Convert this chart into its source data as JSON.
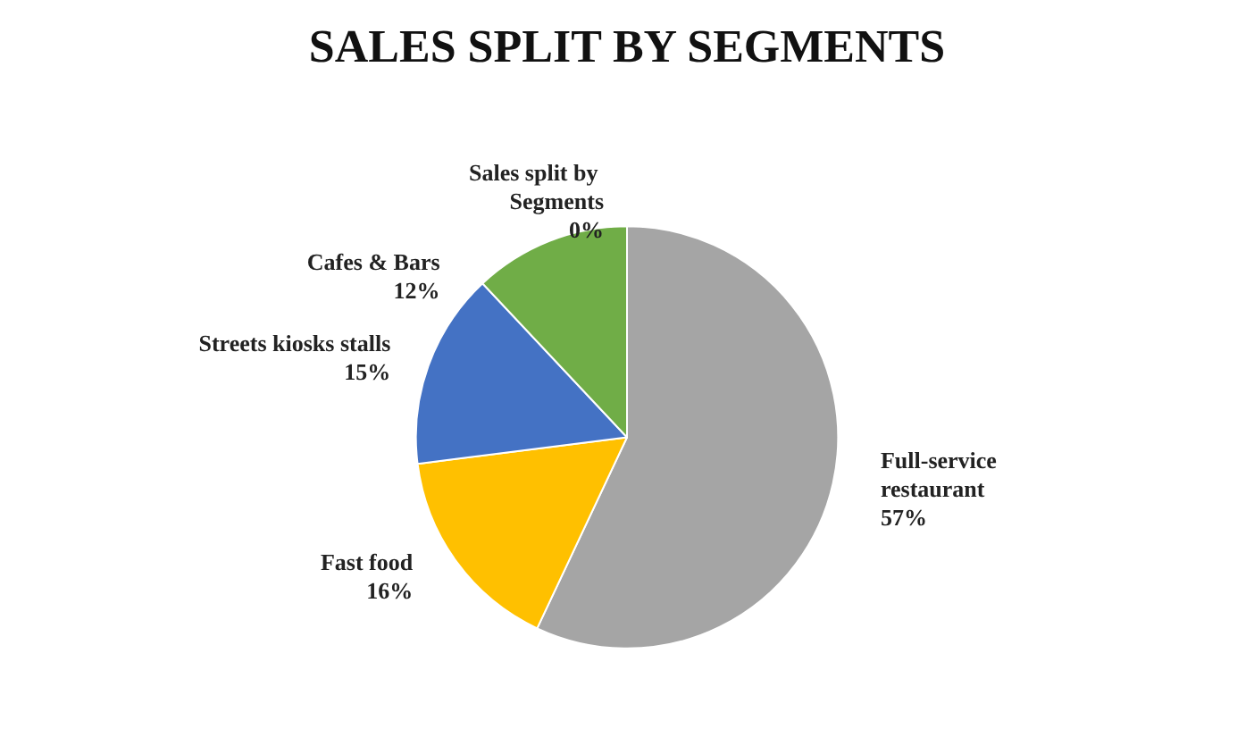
{
  "chart_data": {
    "type": "pie",
    "title": "SALES SPLIT BY SEGMENTS",
    "categories": [
      "Sales split by Segments",
      "Full-service restaurant",
      "Fast food",
      "Streets kiosks stalls",
      "Cafes & Bars"
    ],
    "values": [
      0,
      57,
      16,
      15,
      12
    ],
    "value_labels": [
      "0%",
      "57%",
      "16%",
      "15%",
      "12%"
    ],
    "colors": [
      "#ed7d31",
      "#a5a5a5",
      "#ffc000",
      "#4472c4",
      "#70ad47"
    ],
    "legend": false
  }
}
